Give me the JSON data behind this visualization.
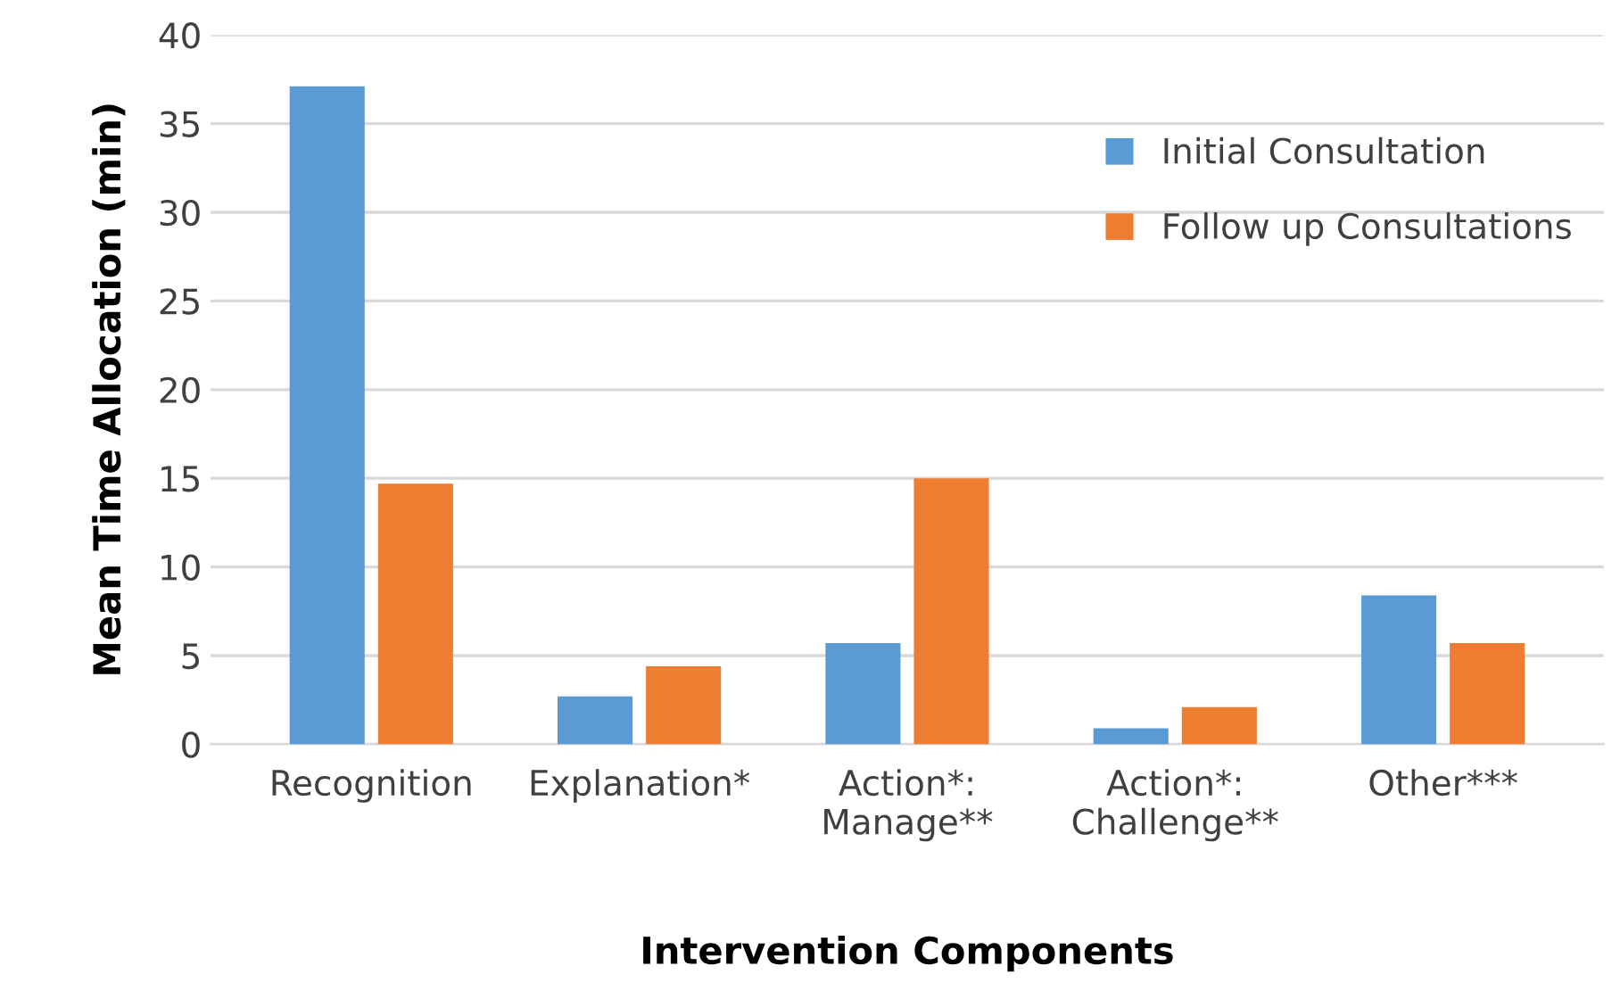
{
  "chart_data": {
    "type": "bar",
    "xlabel": "Intervention Components",
    "ylabel": "Mean Time Allocation (min)",
    "categories": [
      "Recognition",
      "Explanation*",
      "Action*:\nManage**",
      "Action*:\nChallenge**",
      "Other***"
    ],
    "series": [
      {
        "name": "Initial Consultation",
        "color": "#5b9bd5",
        "values": [
          37.1,
          2.7,
          5.7,
          0.9,
          8.4
        ]
      },
      {
        "name": "Follow up Consultations",
        "color": "#ed7d31",
        "values": [
          14.7,
          4.4,
          15.0,
          2.1,
          5.7
        ]
      }
    ],
    "ylim": [
      0,
      40
    ],
    "yticks": [
      0,
      5,
      10,
      15,
      20,
      25,
      30,
      35,
      40
    ],
    "grid": "y",
    "legend": "top right"
  }
}
